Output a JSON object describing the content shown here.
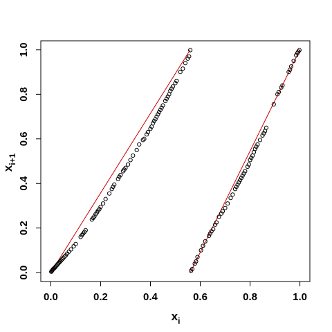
{
  "chart_data": {
    "type": "scatter",
    "title": "",
    "xlabel": {
      "main": "x",
      "sub": "i"
    },
    "ylabel": {
      "main": "x",
      "sub": "i+1"
    },
    "xlim": [
      -0.04,
      1.04
    ],
    "ylim": [
      -0.04,
      1.04
    ],
    "xticks": [
      "0.0",
      "0.2",
      "0.4",
      "0.6",
      "0.8",
      "1.0"
    ],
    "yticks": [
      "0.0",
      "0.2",
      "0.4",
      "0.6",
      "0.8",
      "1.0"
    ],
    "grid": false,
    "legend": "none",
    "colors": {
      "points": "#000000",
      "fit_lines": "#cc0000",
      "frame": "#000000"
    },
    "fit_lines": [
      {
        "x": [
          0.0,
          0.56
        ],
        "y": [
          0.0,
          1.0
        ]
      },
      {
        "x": [
          0.56,
          1.0
        ],
        "y": [
          0.0,
          1.0
        ]
      }
    ],
    "points": [
      [
        0.002,
        0.004
      ],
      [
        0.004,
        0.007
      ],
      [
        0.006,
        0.01
      ],
      [
        0.008,
        0.013
      ],
      [
        0.01,
        0.016
      ],
      [
        0.013,
        0.019
      ],
      [
        0.016,
        0.022
      ],
      [
        0.019,
        0.026
      ],
      [
        0.022,
        0.03
      ],
      [
        0.025,
        0.034
      ],
      [
        0.028,
        0.038
      ],
      [
        0.031,
        0.042
      ],
      [
        0.034,
        0.046
      ],
      [
        0.038,
        0.05
      ],
      [
        0.042,
        0.055
      ],
      [
        0.046,
        0.06
      ],
      [
        0.05,
        0.065
      ],
      [
        0.055,
        0.071
      ],
      [
        0.06,
        0.077
      ],
      [
        0.066,
        0.085
      ],
      [
        0.073,
        0.094
      ],
      [
        0.081,
        0.104
      ],
      [
        0.092,
        0.118
      ],
      [
        0.1,
        0.128
      ],
      [
        0.12,
        0.16
      ],
      [
        0.125,
        0.168
      ],
      [
        0.13,
        0.175
      ],
      [
        0.135,
        0.182
      ],
      [
        0.14,
        0.19
      ],
      [
        0.165,
        0.238
      ],
      [
        0.17,
        0.245
      ],
      [
        0.175,
        0.252
      ],
      [
        0.18,
        0.262
      ],
      [
        0.185,
        0.27
      ],
      [
        0.19,
        0.278
      ],
      [
        0.195,
        0.285
      ],
      [
        0.2,
        0.295
      ],
      [
        0.21,
        0.31
      ],
      [
        0.22,
        0.33
      ],
      [
        0.235,
        0.355
      ],
      [
        0.245,
        0.375
      ],
      [
        0.25,
        0.385
      ],
      [
        0.255,
        0.395
      ],
      [
        0.27,
        0.42
      ],
      [
        0.275,
        0.43
      ],
      [
        0.28,
        0.438
      ],
      [
        0.29,
        0.455
      ],
      [
        0.295,
        0.462
      ],
      [
        0.3,
        0.47
      ],
      [
        0.31,
        0.485
      ],
      [
        0.32,
        0.505
      ],
      [
        0.33,
        0.525
      ],
      [
        0.345,
        0.55
      ],
      [
        0.355,
        0.575
      ],
      [
        0.37,
        0.595
      ],
      [
        0.375,
        0.6
      ],
      [
        0.385,
        0.62
      ],
      [
        0.39,
        0.63
      ],
      [
        0.4,
        0.645
      ],
      [
        0.405,
        0.655
      ],
      [
        0.41,
        0.67
      ],
      [
        0.415,
        0.68
      ],
      [
        0.42,
        0.688
      ],
      [
        0.425,
        0.7
      ],
      [
        0.43,
        0.71
      ],
      [
        0.435,
        0.72
      ],
      [
        0.44,
        0.73
      ],
      [
        0.445,
        0.74
      ],
      [
        0.45,
        0.75
      ],
      [
        0.46,
        0.77
      ],
      [
        0.465,
        0.78
      ],
      [
        0.47,
        0.79
      ],
      [
        0.475,
        0.8
      ],
      [
        0.48,
        0.815
      ],
      [
        0.485,
        0.825
      ],
      [
        0.49,
        0.835
      ],
      [
        0.5,
        0.85
      ],
      [
        0.505,
        0.86
      ],
      [
        0.52,
        0.9
      ],
      [
        0.53,
        0.915
      ],
      [
        0.54,
        0.94
      ],
      [
        0.55,
        0.96
      ],
      [
        0.555,
        0.97
      ],
      [
        0.56,
        0.998
      ],
      [
        0.563,
        0.008
      ],
      [
        0.568,
        0.016
      ],
      [
        0.578,
        0.04
      ],
      [
        0.583,
        0.05
      ],
      [
        0.589,
        0.07
      ],
      [
        0.603,
        0.1
      ],
      [
        0.611,
        0.12
      ],
      [
        0.62,
        0.14
      ],
      [
        0.635,
        0.165
      ],
      [
        0.64,
        0.175
      ],
      [
        0.645,
        0.185
      ],
      [
        0.652,
        0.195
      ],
      [
        0.66,
        0.215
      ],
      [
        0.665,
        0.225
      ],
      [
        0.675,
        0.25
      ],
      [
        0.685,
        0.265
      ],
      [
        0.69,
        0.275
      ],
      [
        0.7,
        0.29
      ],
      [
        0.71,
        0.31
      ],
      [
        0.722,
        0.335
      ],
      [
        0.73,
        0.35
      ],
      [
        0.74,
        0.375
      ],
      [
        0.745,
        0.385
      ],
      [
        0.75,
        0.395
      ],
      [
        0.755,
        0.405
      ],
      [
        0.76,
        0.415
      ],
      [
        0.765,
        0.425
      ],
      [
        0.77,
        0.435
      ],
      [
        0.775,
        0.445
      ],
      [
        0.78,
        0.455
      ],
      [
        0.79,
        0.475
      ],
      [
        0.795,
        0.485
      ],
      [
        0.8,
        0.505
      ],
      [
        0.805,
        0.515
      ],
      [
        0.81,
        0.525
      ],
      [
        0.815,
        0.54
      ],
      [
        0.82,
        0.555
      ],
      [
        0.825,
        0.565
      ],
      [
        0.83,
        0.575
      ],
      [
        0.84,
        0.595
      ],
      [
        0.85,
        0.615
      ],
      [
        0.855,
        0.625
      ],
      [
        0.86,
        0.635
      ],
      [
        0.865,
        0.65
      ],
      [
        0.895,
        0.755
      ],
      [
        0.91,
        0.8
      ],
      [
        0.915,
        0.81
      ],
      [
        0.925,
        0.83
      ],
      [
        0.93,
        0.84
      ],
      [
        0.955,
        0.9
      ],
      [
        0.96,
        0.91
      ],
      [
        0.965,
        0.925
      ],
      [
        0.975,
        0.95
      ],
      [
        0.985,
        0.975
      ],
      [
        0.99,
        0.985
      ],
      [
        0.994,
        0.992
      ],
      [
        0.998,
        0.998
      ]
    ]
  }
}
